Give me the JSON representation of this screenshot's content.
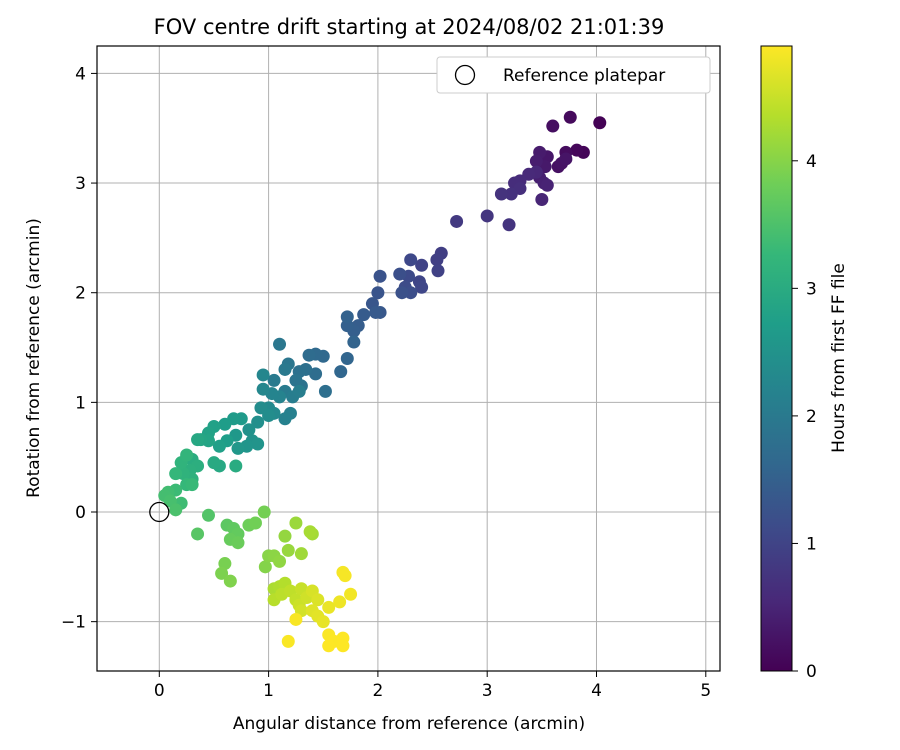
{
  "chart_data": {
    "type": "scatter",
    "title": "FOV centre drift starting at 2024/08/02 21:01:39",
    "xlabel": "Angular distance from reference (arcmin)",
    "ylabel": "Rotation from reference (arcmin)",
    "xlim": [
      -0.57,
      5.13
    ],
    "ylim": [
      -1.45,
      4.25
    ],
    "x_ticks": [
      0,
      1,
      2,
      3,
      4,
      5
    ],
    "y_ticks": [
      -1,
      0,
      1,
      2,
      3,
      4
    ],
    "grid": true,
    "legend": {
      "position": "top-right",
      "entries": [
        "Reference platepar"
      ]
    },
    "reference_point": {
      "label": "Reference platepar",
      "x": 0,
      "y": 0
    },
    "colorbar": {
      "label": "Hours from first FF file",
      "range": [
        0,
        4.9
      ],
      "ticks": [
        0,
        1,
        2,
        3,
        4
      ],
      "colormap": "viridis",
      "colors": [
        "#440154",
        "#482878",
        "#3e4989",
        "#31688e",
        "#26828e",
        "#1f9e89",
        "#35b779",
        "#6ece58",
        "#b5de2b",
        "#fde725"
      ]
    },
    "points": [
      {
        "x": 4.03,
        "y": 3.55,
        "t": 0.02
      },
      {
        "x": 3.88,
        "y": 3.28,
        "t": 0.06
      },
      {
        "x": 3.82,
        "y": 3.3,
        "t": 0.09
      },
      {
        "x": 3.76,
        "y": 3.6,
        "t": 0.12
      },
      {
        "x": 3.72,
        "y": 3.28,
        "t": 0.15
      },
      {
        "x": 3.6,
        "y": 3.52,
        "t": 0.18
      },
      {
        "x": 3.65,
        "y": 3.15,
        "t": 0.21
      },
      {
        "x": 3.68,
        "y": 3.18,
        "t": 0.24
      },
      {
        "x": 3.72,
        "y": 3.22,
        "t": 0.27
      },
      {
        "x": 3.55,
        "y": 3.24,
        "t": 0.3
      },
      {
        "x": 3.53,
        "y": 3.15,
        "t": 0.33
      },
      {
        "x": 3.48,
        "y": 3.28,
        "t": 0.36
      },
      {
        "x": 3.45,
        "y": 3.2,
        "t": 0.39
      },
      {
        "x": 3.48,
        "y": 3.05,
        "t": 0.42
      },
      {
        "x": 3.52,
        "y": 3.0,
        "t": 0.45
      },
      {
        "x": 3.55,
        "y": 2.98,
        "t": 0.48
      },
      {
        "x": 3.5,
        "y": 2.85,
        "t": 0.51
      },
      {
        "x": 3.45,
        "y": 3.1,
        "t": 0.54
      },
      {
        "x": 3.38,
        "y": 3.08,
        "t": 0.57
      },
      {
        "x": 3.3,
        "y": 3.02,
        "t": 0.6
      },
      {
        "x": 3.25,
        "y": 3.0,
        "t": 0.63
      },
      {
        "x": 3.3,
        "y": 2.95,
        "t": 0.66
      },
      {
        "x": 3.22,
        "y": 2.9,
        "t": 0.69
      },
      {
        "x": 3.13,
        "y": 2.9,
        "t": 0.72
      },
      {
        "x": 3.0,
        "y": 2.7,
        "t": 0.78
      },
      {
        "x": 3.2,
        "y": 2.62,
        "t": 0.75
      },
      {
        "x": 2.72,
        "y": 2.65,
        "t": 0.84
      },
      {
        "x": 2.58,
        "y": 2.36,
        "t": 0.9
      },
      {
        "x": 2.54,
        "y": 2.3,
        "t": 0.93
      },
      {
        "x": 2.55,
        "y": 2.2,
        "t": 0.96
      },
      {
        "x": 2.4,
        "y": 2.25,
        "t": 0.99
      },
      {
        "x": 2.38,
        "y": 2.1,
        "t": 1.02
      },
      {
        "x": 2.4,
        "y": 2.05,
        "t": 1.05
      },
      {
        "x": 2.3,
        "y": 2.3,
        "t": 1.08
      },
      {
        "x": 2.28,
        "y": 2.15,
        "t": 1.11
      },
      {
        "x": 2.25,
        "y": 2.05,
        "t": 1.14
      },
      {
        "x": 2.3,
        "y": 2.0,
        "t": 1.17
      },
      {
        "x": 2.2,
        "y": 2.17,
        "t": 1.2
      },
      {
        "x": 2.22,
        "y": 2.0,
        "t": 1.23
      },
      {
        "x": 2.02,
        "y": 2.15,
        "t": 1.26
      },
      {
        "x": 2.0,
        "y": 2.0,
        "t": 1.29
      },
      {
        "x": 1.95,
        "y": 1.9,
        "t": 1.32
      },
      {
        "x": 2.02,
        "y": 1.82,
        "t": 1.35
      },
      {
        "x": 1.98,
        "y": 1.82,
        "t": 1.38
      },
      {
        "x": 1.87,
        "y": 1.8,
        "t": 1.41
      },
      {
        "x": 1.82,
        "y": 1.7,
        "t": 1.44
      },
      {
        "x": 1.78,
        "y": 1.65,
        "t": 1.47
      },
      {
        "x": 1.72,
        "y": 1.7,
        "t": 1.5
      },
      {
        "x": 1.72,
        "y": 1.78,
        "t": 1.53
      },
      {
        "x": 1.78,
        "y": 1.55,
        "t": 1.56
      },
      {
        "x": 1.72,
        "y": 1.4,
        "t": 1.59
      },
      {
        "x": 1.66,
        "y": 1.28,
        "t": 1.62
      },
      {
        "x": 1.5,
        "y": 1.42,
        "t": 1.65
      },
      {
        "x": 1.43,
        "y": 1.44,
        "t": 1.68
      },
      {
        "x": 1.37,
        "y": 1.43,
        "t": 1.71
      },
      {
        "x": 1.43,
        "y": 1.26,
        "t": 1.74
      },
      {
        "x": 1.52,
        "y": 1.1,
        "t": 1.77
      },
      {
        "x": 1.34,
        "y": 1.3,
        "t": 1.8
      },
      {
        "x": 1.28,
        "y": 1.28,
        "t": 1.83
      },
      {
        "x": 1.3,
        "y": 1.15,
        "t": 1.86
      },
      {
        "x": 1.25,
        "y": 1.2,
        "t": 1.89
      },
      {
        "x": 1.18,
        "y": 1.35,
        "t": 1.92
      },
      {
        "x": 1.1,
        "y": 1.53,
        "t": 1.95
      },
      {
        "x": 1.15,
        "y": 1.3,
        "t": 1.98
      },
      {
        "x": 1.05,
        "y": 1.2,
        "t": 2.01
      },
      {
        "x": 1.15,
        "y": 1.1,
        "t": 2.04
      },
      {
        "x": 1.22,
        "y": 1.05,
        "t": 2.07
      },
      {
        "x": 1.28,
        "y": 1.1,
        "t": 2.1
      },
      {
        "x": 1.2,
        "y": 0.9,
        "t": 2.13
      },
      {
        "x": 1.15,
        "y": 0.85,
        "t": 2.16
      },
      {
        "x": 1.1,
        "y": 1.05,
        "t": 2.19
      },
      {
        "x": 1.03,
        "y": 1.08,
        "t": 2.22
      },
      {
        "x": 0.95,
        "y": 1.25,
        "t": 2.25
      },
      {
        "x": 0.95,
        "y": 1.12,
        "t": 2.28
      },
      {
        "x": 1.0,
        "y": 0.95,
        "t": 2.31
      },
      {
        "x": 1.05,
        "y": 0.9,
        "t": 2.34
      },
      {
        "x": 0.93,
        "y": 0.95,
        "t": 2.37
      },
      {
        "x": 1.0,
        "y": 0.88,
        "t": 2.4
      },
      {
        "x": 0.9,
        "y": 0.82,
        "t": 2.43
      },
      {
        "x": 0.82,
        "y": 0.75,
        "t": 2.46
      },
      {
        "x": 0.85,
        "y": 0.65,
        "t": 2.49
      },
      {
        "x": 0.9,
        "y": 0.62,
        "t": 2.52
      },
      {
        "x": 0.8,
        "y": 0.6,
        "t": 2.55
      },
      {
        "x": 0.72,
        "y": 0.58,
        "t": 2.58
      },
      {
        "x": 0.7,
        "y": 0.7,
        "t": 2.61
      },
      {
        "x": 0.75,
        "y": 0.85,
        "t": 2.64
      },
      {
        "x": 0.68,
        "y": 0.85,
        "t": 2.67
      },
      {
        "x": 0.6,
        "y": 0.8,
        "t": 2.7
      },
      {
        "x": 0.62,
        "y": 0.65,
        "t": 2.73
      },
      {
        "x": 0.55,
        "y": 0.6,
        "t": 2.76
      },
      {
        "x": 0.5,
        "y": 0.78,
        "t": 2.79
      },
      {
        "x": 0.45,
        "y": 0.72,
        "t": 2.82
      },
      {
        "x": 0.45,
        "y": 0.65,
        "t": 2.85
      },
      {
        "x": 0.38,
        "y": 0.66,
        "t": 2.88
      },
      {
        "x": 0.35,
        "y": 0.66,
        "t": 2.91
      },
      {
        "x": 0.55,
        "y": 0.42,
        "t": 2.94
      },
      {
        "x": 0.5,
        "y": 0.45,
        "t": 2.97
      },
      {
        "x": 0.7,
        "y": 0.42,
        "t": 3.0
      },
      {
        "x": 0.3,
        "y": 0.48,
        "t": 3.03
      },
      {
        "x": 0.35,
        "y": 0.42,
        "t": 3.06
      },
      {
        "x": 0.28,
        "y": 0.38,
        "t": 3.09
      },
      {
        "x": 0.3,
        "y": 0.3,
        "t": 3.12
      },
      {
        "x": 0.22,
        "y": 0.35,
        "t": 3.15
      },
      {
        "x": 0.2,
        "y": 0.45,
        "t": 3.18
      },
      {
        "x": 0.25,
        "y": 0.52,
        "t": 3.21
      },
      {
        "x": 0.15,
        "y": 0.35,
        "t": 3.24
      },
      {
        "x": 0.25,
        "y": 0.25,
        "t": 3.27
      },
      {
        "x": 0.3,
        "y": 0.25,
        "t": 3.3
      },
      {
        "x": 0.15,
        "y": 0.2,
        "t": 3.33
      },
      {
        "x": 0.2,
        "y": 0.08,
        "t": 3.36
      },
      {
        "x": 0.08,
        "y": 0.18,
        "t": 3.39
      },
      {
        "x": 0.05,
        "y": 0.15,
        "t": 3.42
      },
      {
        "x": 0.1,
        "y": 0.1,
        "t": 3.45
      },
      {
        "x": 0.15,
        "y": 0.02,
        "t": 3.48
      },
      {
        "x": 0.45,
        "y": -0.03,
        "t": 3.55
      },
      {
        "x": 0.35,
        "y": -0.2,
        "t": 3.6
      },
      {
        "x": 0.62,
        "y": -0.12,
        "t": 3.65
      },
      {
        "x": 0.68,
        "y": -0.15,
        "t": 3.68
      },
      {
        "x": 0.72,
        "y": -0.2,
        "t": 3.71
      },
      {
        "x": 0.65,
        "y": -0.25,
        "t": 3.74
      },
      {
        "x": 0.72,
        "y": -0.28,
        "t": 3.77
      },
      {
        "x": 0.82,
        "y": -0.12,
        "t": 3.8
      },
      {
        "x": 0.88,
        "y": -0.1,
        "t": 3.83
      },
      {
        "x": 0.96,
        "y": 0.0,
        "t": 3.86
      },
      {
        "x": 0.6,
        "y": -0.47,
        "t": 3.89
      },
      {
        "x": 0.57,
        "y": -0.56,
        "t": 3.92
      },
      {
        "x": 0.65,
        "y": -0.63,
        "t": 3.95
      },
      {
        "x": 0.97,
        "y": -0.5,
        "t": 3.98
      },
      {
        "x": 1.0,
        "y": -0.4,
        "t": 4.01
      },
      {
        "x": 1.05,
        "y": -0.4,
        "t": 4.04
      },
      {
        "x": 1.1,
        "y": -0.45,
        "t": 4.07
      },
      {
        "x": 1.15,
        "y": -0.22,
        "t": 4.1
      },
      {
        "x": 1.18,
        "y": -0.35,
        "t": 4.13
      },
      {
        "x": 1.25,
        "y": -0.1,
        "t": 4.16
      },
      {
        "x": 1.3,
        "y": -0.38,
        "t": 4.19
      },
      {
        "x": 1.4,
        "y": -0.2,
        "t": 4.22
      },
      {
        "x": 1.38,
        "y": -0.18,
        "t": 4.25
      },
      {
        "x": 1.05,
        "y": -0.7,
        "t": 4.28
      },
      {
        "x": 1.1,
        "y": -0.68,
        "t": 4.31
      },
      {
        "x": 1.15,
        "y": -0.65,
        "t": 4.34
      },
      {
        "x": 1.05,
        "y": -0.8,
        "t": 4.37
      },
      {
        "x": 1.12,
        "y": -0.75,
        "t": 4.4
      },
      {
        "x": 1.2,
        "y": -0.72,
        "t": 4.43
      },
      {
        "x": 1.25,
        "y": -0.8,
        "t": 4.46
      },
      {
        "x": 1.3,
        "y": -0.7,
        "t": 4.49
      },
      {
        "x": 1.28,
        "y": -0.85,
        "t": 4.52
      },
      {
        "x": 1.35,
        "y": -0.78,
        "t": 4.55
      },
      {
        "x": 1.3,
        "y": -0.9,
        "t": 4.58
      },
      {
        "x": 1.4,
        "y": -0.72,
        "t": 4.61
      },
      {
        "x": 1.45,
        "y": -0.8,
        "t": 4.64
      },
      {
        "x": 1.4,
        "y": -0.9,
        "t": 4.67
      },
      {
        "x": 1.45,
        "y": -0.95,
        "t": 4.7
      },
      {
        "x": 1.5,
        "y": -1.0,
        "t": 4.73
      },
      {
        "x": 1.55,
        "y": -0.87,
        "t": 4.76
      },
      {
        "x": 1.65,
        "y": -0.82,
        "t": 4.79
      },
      {
        "x": 1.75,
        "y": -0.75,
        "t": 4.82
      },
      {
        "x": 1.68,
        "y": -0.55,
        "t": 4.84
      },
      {
        "x": 1.7,
        "y": -0.58,
        "t": 4.85
      },
      {
        "x": 1.25,
        "y": -0.98,
        "t": 4.86
      },
      {
        "x": 1.18,
        "y": -1.18,
        "t": 4.87
      },
      {
        "x": 1.55,
        "y": -1.12,
        "t": 4.88
      },
      {
        "x": 1.6,
        "y": -1.18,
        "t": 4.89
      },
      {
        "x": 1.68,
        "y": -1.15,
        "t": 4.9
      },
      {
        "x": 1.55,
        "y": -1.22,
        "t": 4.9
      },
      {
        "x": 1.68,
        "y": -1.22,
        "t": 4.9
      }
    ]
  }
}
